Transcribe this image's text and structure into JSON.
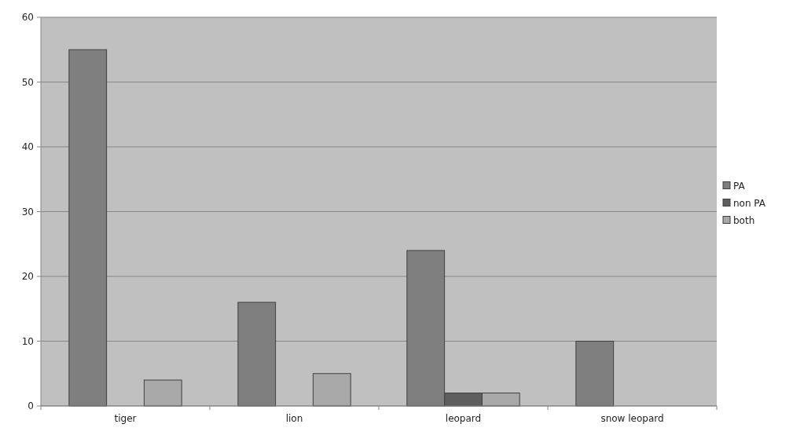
{
  "chart_data": {
    "type": "bar",
    "categories": [
      "tiger",
      "lion",
      "leopard",
      "snow leopard"
    ],
    "series": [
      {
        "name": "PA",
        "color": "#7f7f7f",
        "values": [
          55,
          16,
          24,
          10
        ]
      },
      {
        "name": "non PA",
        "color": "#5e5e5e",
        "values": [
          0,
          0,
          2,
          0
        ]
      },
      {
        "name": "both",
        "color": "#a8a8a8",
        "values": [
          4,
          5,
          2,
          0
        ]
      }
    ],
    "ylim": [
      0,
      60
    ],
    "yticks": [
      0,
      10,
      20,
      30,
      40,
      50,
      60
    ],
    "grid": "y",
    "legend": "right"
  }
}
